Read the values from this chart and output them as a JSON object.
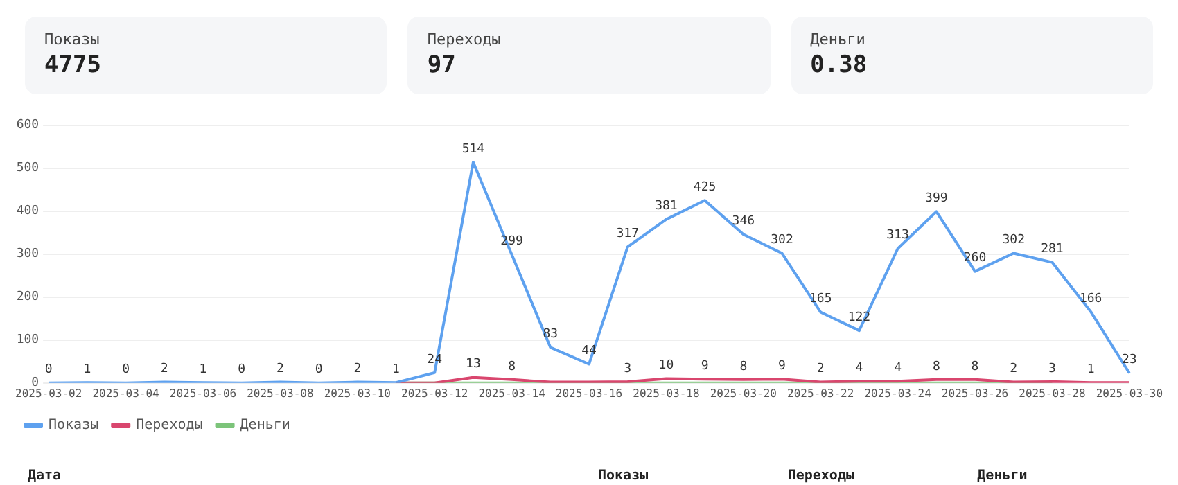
{
  "chart_data": [
    {
      "type": "other",
      "title": "Показы",
      "annotations": [
        "4775"
      ]
    },
    {
      "type": "other",
      "title": "Переходы",
      "annotations": [
        "97"
      ]
    },
    {
      "type": "other",
      "title": "Деньги",
      "annotations": [
        "0.38"
      ]
    },
    {
      "type": "line",
      "categories": [
        "2025-03-02",
        null,
        "2025-03-04",
        null,
        "2025-03-06",
        null,
        "2025-03-08",
        null,
        "2025-03-10",
        null,
        "2025-03-12",
        null,
        "2025-03-14",
        null,
        "2025-03-16",
        null,
        "2025-03-18",
        null,
        "2025-03-20",
        null,
        "2025-03-22",
        null,
        "2025-03-24",
        null,
        "2025-03-26",
        null,
        "2025-03-28",
        null,
        "2025-03-30"
      ],
      "series": [
        {
          "name": "Показы",
          "color": "#5ea1ef",
          "values": [
            0,
            1,
            0,
            2,
            1,
            0,
            2,
            0,
            2,
            1,
            24,
            514,
            299,
            83,
            44,
            317,
            381,
            425,
            346,
            302,
            165,
            122,
            313,
            399,
            260,
            302,
            281,
            166,
            23
          ],
          "value_labels": [
            "0",
            "1",
            "0",
            "2",
            "1",
            "0",
            "2",
            "0",
            "2",
            "1",
            "24",
            "514",
            "299",
            "83",
            "44",
            "317",
            "381",
            "425",
            "346",
            "302",
            "165",
            "122",
            "313",
            "399",
            "260",
            "302",
            "281",
            "166",
            "23"
          ]
        },
        {
          "name": "Переходы",
          "color": "#d9466e",
          "values": [
            null,
            null,
            null,
            null,
            null,
            null,
            null,
            null,
            null,
            0,
            0,
            13,
            8,
            2,
            2,
            3,
            10,
            9,
            8,
            9,
            2,
            4,
            4,
            8,
            8,
            2,
            3,
            1,
            1
          ],
          "value_labels": [
            null,
            null,
            null,
            null,
            null,
            null,
            null,
            null,
            null,
            null,
            null,
            "13",
            "8",
            null,
            null,
            "3",
            "10",
            "9",
            "8",
            "9",
            "2",
            "4",
            "4",
            "8",
            "8",
            "2",
            "3",
            "1",
            null
          ]
        },
        {
          "name": "Деньги",
          "color": "#7cc47a",
          "values": [
            null,
            null,
            null,
            null,
            null,
            null,
            null,
            null,
            null,
            0,
            0,
            0,
            0,
            0,
            0,
            0,
            0,
            0,
            0,
            0,
            0,
            0,
            0,
            0,
            0,
            0,
            0,
            null,
            null
          ]
        }
      ],
      "ylim": [
        0,
        600
      ],
      "yticks": [
        0,
        100,
        200,
        300,
        400,
        500,
        600
      ],
      "grid": "y",
      "legend": "bottom left",
      "marker": "none",
      "line_style": "solid",
      "annotations": [
        "Дата",
        "Показы",
        "Переходы",
        "Деньги"
      ]
    }
  ]
}
